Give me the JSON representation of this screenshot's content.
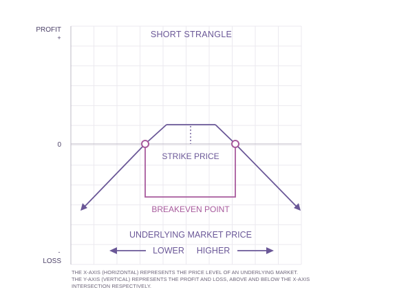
{
  "chart_data": {
    "type": "line",
    "title": "SHORT STRANGLE",
    "ylabel_top": "PROFIT",
    "ylabel_top_sign": "+",
    "ylabel_bottom": "LOSS",
    "ylabel_bottom_sign": "-",
    "zero_label": "0",
    "xlabel": "UNDERLYING MARKET PRICE",
    "direction_lower": "LOWER",
    "direction_higher": "HIGHER",
    "strike_label": "STRIKE PRICE",
    "breakeven_label": "BREAKEVEN POINT",
    "grid": true,
    "colors": {
      "payoff": "#6a5797",
      "breakeven": "#a75a9c",
      "axis": "#bdb8c6",
      "grid": "#ebe9ef",
      "text": "#4a3f66"
    }
  },
  "footnote": {
    "line1": "THE X-AXIS (HORIZONTAL) REPRESENTS  THE PRICE LEVEL OF AN UNDERLYING MARKET.",
    "line2": "THE Y-AXIS (VERTICAL) REPRESENTS THE PROFIT AND LOSS, ABOVE AND BELOW THE X-AXIS",
    "line3": "INTERSECTION RESPECTIVELY."
  }
}
